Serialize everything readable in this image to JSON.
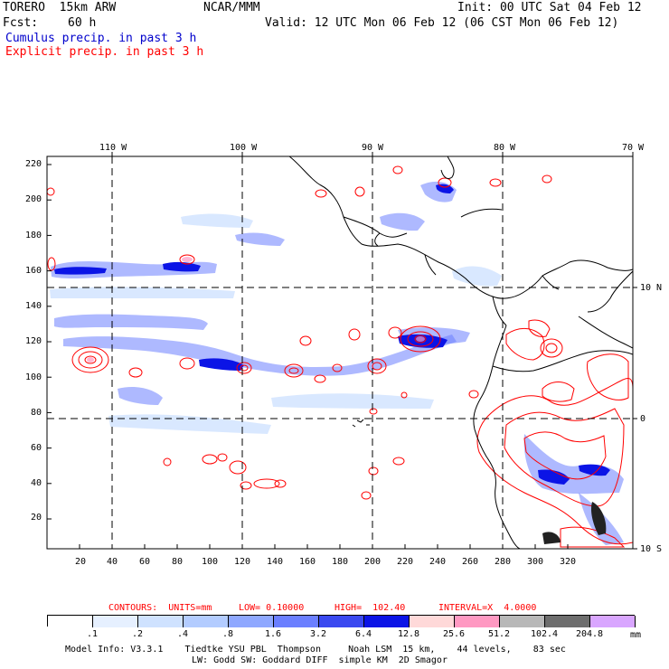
{
  "header": {
    "model": "TORERO  15km ARW",
    "org": "NCAR/MMM",
    "init": "Init: 00 UTC Sat 04 Feb 12",
    "fcst_label": "Fcst:",
    "fcst_value": "60 h",
    "valid": "Valid: 12 UTC Mon 06 Feb 12 (06 CST Mon 06 Feb 12)",
    "cumulus": "Cumulus precip. in past 3 h",
    "explicit": "Explicit precip. in past 3 h"
  },
  "map": {
    "top_lon_labels": [
      "110 W",
      "100 W",
      "90 W",
      "80 W",
      "70 W"
    ],
    "right_lat_labels": [
      "10 N",
      "0",
      "10 S"
    ],
    "y_ticks": [
      "220",
      "200",
      "180",
      "160",
      "140",
      "120",
      "100",
      "80",
      "60",
      "40",
      "20"
    ],
    "x_ticks": [
      "20",
      "40",
      "60",
      "80",
      "100",
      "120",
      "140",
      "160",
      "180",
      "200",
      "220",
      "240",
      "260",
      "280",
      "300",
      "320"
    ]
  },
  "contour_info": {
    "contours": "CONTOURS:  UNITS=mm",
    "low": "LOW= 0.10000",
    "high": "HIGH=  102.40",
    "interval": "INTERVAL=X  4.0000"
  },
  "colorbar": {
    "labels": [
      ".1",
      ".2",
      ".4",
      ".8",
      "1.6",
      "3.2",
      "6.4",
      "12.8",
      "25.6",
      "51.2",
      "102.4",
      "204.8"
    ],
    "unit": "mm",
    "colors": [
      "#ffffff",
      "#e6f0ff",
      "#cfe2ff",
      "#b3ccff",
      "#8fa8ff",
      "#6b7fff",
      "#3a49f0",
      "#0b14e6",
      "#ffd9d9",
      "#ff99c2",
      "#b8b8b8",
      "#6e6e6e",
      "#d9a6ff"
    ]
  },
  "footer": {
    "line1": "Model Info: V3.3.1    Tiedtke YSU PBL  Thompson     Noah LSM  15 km,    44 levels,    83 sec",
    "line2": "LW: Godd SW: Goddard DIFF  simple KM  2D Smagor"
  }
}
